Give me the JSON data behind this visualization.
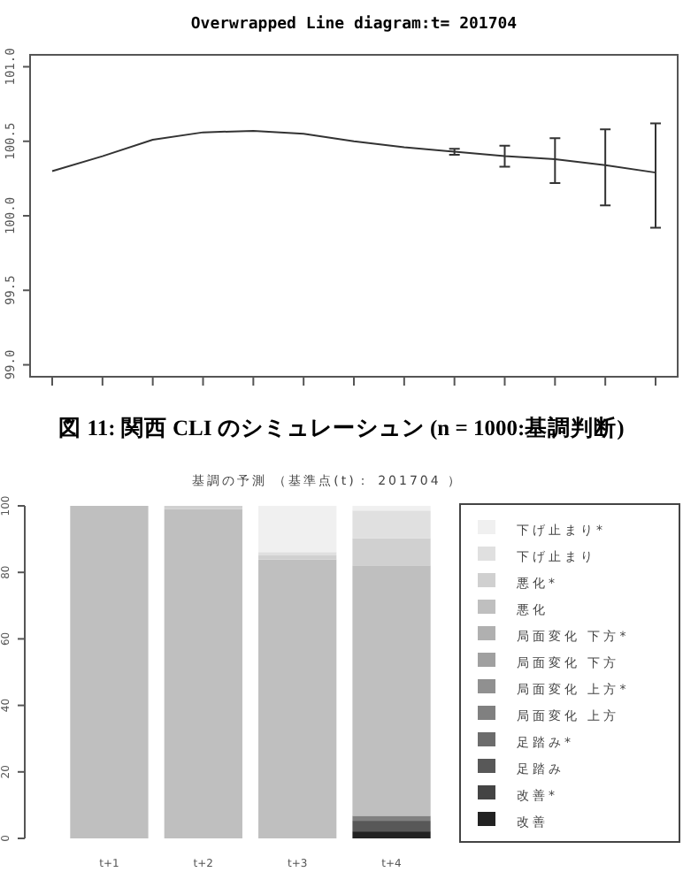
{
  "chart_data": [
    {
      "type": "line",
      "title": "Overwrapped Line diagram:t= 201704",
      "categories": [
        null,
        null,
        null,
        null,
        null,
        null,
        null,
        null,
        null,
        null,
        null,
        null,
        null
      ],
      "values": [
        100.3,
        100.4,
        100.51,
        100.56,
        100.57,
        100.55,
        100.5,
        100.46,
        100.43,
        100.4,
        100.38,
        100.34,
        100.29
      ],
      "errors": [
        null,
        null,
        null,
        null,
        null,
        null,
        null,
        null,
        [
          100.41,
          100.45
        ],
        [
          100.33,
          100.47
        ],
        [
          100.22,
          100.52
        ],
        [
          100.07,
          100.58
        ],
        [
          99.92,
          100.62
        ]
      ],
      "color": "#333333",
      "ylim": [
        98.92,
        101.08
      ],
      "yticks": [
        {
          "value": 99,
          "label": "99.0"
        },
        99.5,
        {
          "value": 100,
          "label": "100.0"
        },
        100.5,
        {
          "value": 101,
          "label": "101.0"
        }
      ],
      "annotations": [
        "図 11: 関西 CLI のシミュレーシュン (n = 1000:基調判断)"
      ]
    },
    {
      "type": "bar",
      "stacked": true,
      "title": "基調の予測 （基準点(t)： 201704 ）",
      "categories": [
        "t+1",
        "t+2",
        "t+3",
        "t+4"
      ],
      "series": [
        {
          "name": "改善",
          "color": "#222222",
          "values": [
            0,
            0,
            0,
            2.1
          ]
        },
        {
          "name": "改善*",
          "color": "#444444",
          "values": [
            0,
            0,
            0,
            0
          ]
        },
        {
          "name": "足踏み",
          "color": "#585858",
          "values": [
            0,
            0,
            0,
            3.2
          ]
        },
        {
          "name": "足踏み*",
          "color": "#6c6c6c",
          "values": [
            0,
            0,
            0,
            0
          ]
        },
        {
          "name": "局面変化 上方",
          "color": "#808080",
          "values": [
            0,
            0,
            0,
            1.5
          ]
        },
        {
          "name": "局面変化 上方*",
          "color": "#909090",
          "values": [
            0,
            0,
            0,
            0
          ]
        },
        {
          "name": "局面変化 下方",
          "color": "#a0a0a0",
          "values": [
            0,
            0,
            0,
            0
          ]
        },
        {
          "name": "局面変化 下方*",
          "color": "#b0b0b0",
          "values": [
            0,
            0,
            0,
            0
          ]
        },
        {
          "name": "悪化",
          "color": "#bfbfbf",
          "values": [
            100,
            99.0,
            83.9,
            75.3
          ]
        },
        {
          "name": "悪化*",
          "color": "#d0d0d0",
          "values": [
            0,
            1.0,
            1.2,
            8.2
          ]
        },
        {
          "name": "下げ止まり",
          "color": "#e0e0e0",
          "values": [
            0,
            0,
            1.0,
            8.3
          ]
        },
        {
          "name": "下げ止まり*",
          "color": "#f0f0f0",
          "values": [
            0,
            0,
            13.9,
            1.4
          ]
        }
      ],
      "ylim": [
        0,
        100
      ],
      "yticks": [
        0,
        20,
        40,
        60,
        80,
        100
      ],
      "legend": "right"
    }
  ]
}
